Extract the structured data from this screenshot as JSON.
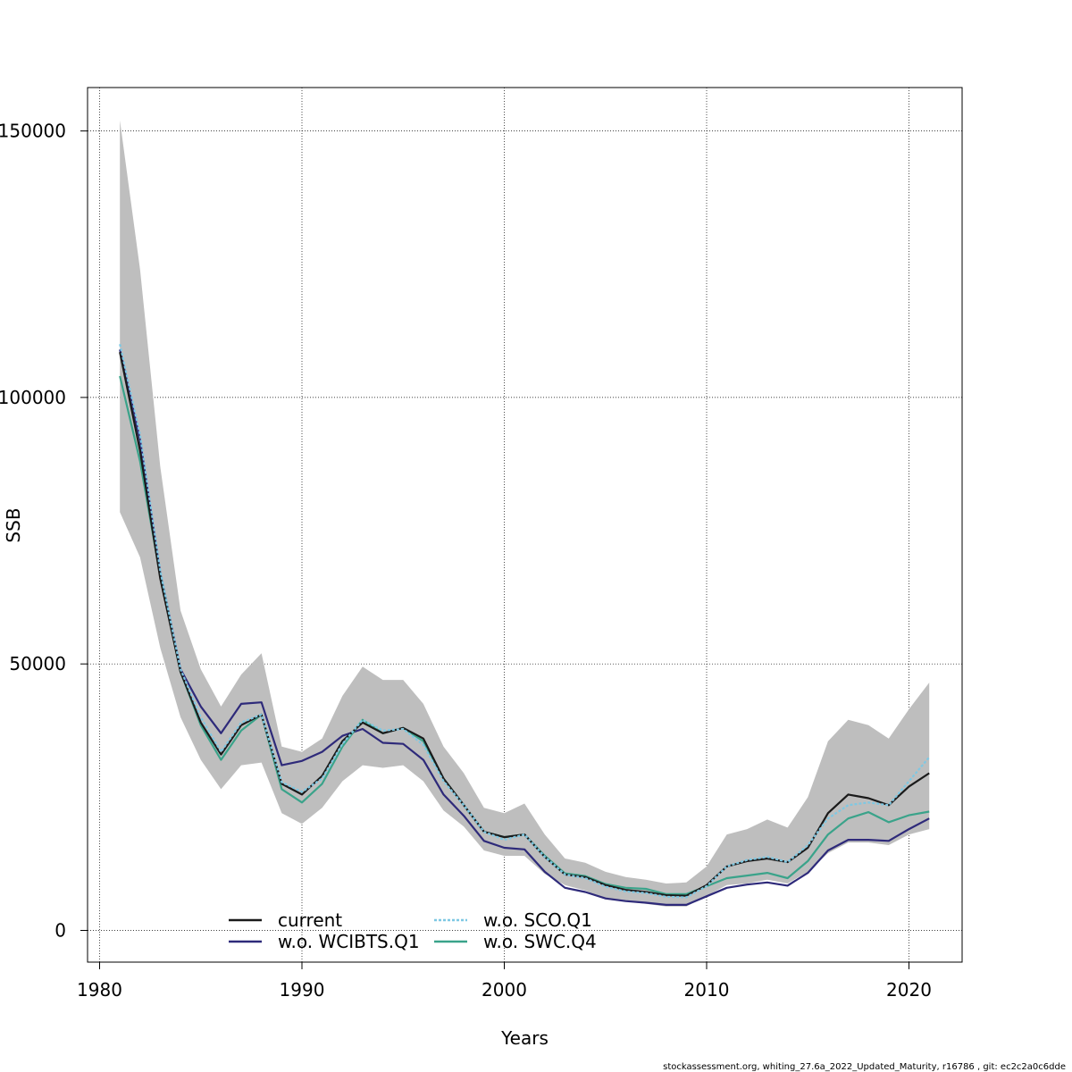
{
  "chart_data": {
    "type": "line",
    "title": "",
    "xlabel": "Years",
    "ylabel": "SSB",
    "xlim": [
      1980,
      2022
    ],
    "ylim": [
      0,
      155000
    ],
    "xticks": [
      1980,
      1990,
      2000,
      2010,
      2020
    ],
    "yticks": [
      0,
      50000,
      100000,
      150000
    ],
    "xtick_labels": [
      "1980",
      "1990",
      "2000",
      "2010",
      "2020"
    ],
    "ytick_labels": [
      "0",
      "50000",
      "100000",
      "150000"
    ],
    "grid": true,
    "legend_position": "bottom-center",
    "x": [
      1981,
      1982,
      1983,
      1984,
      1985,
      1986,
      1987,
      1988,
      1989,
      1990,
      1991,
      1992,
      1993,
      1994,
      1995,
      1996,
      1997,
      1998,
      1999,
      2000,
      2001,
      2002,
      2003,
      2004,
      2005,
      2006,
      2007,
      2008,
      2009,
      2010,
      2011,
      2012,
      2013,
      2014,
      2015,
      2016,
      2017,
      2018,
      2019,
      2020,
      2021
    ],
    "band": {
      "color": "#bebebe",
      "upper": [
        152000,
        124000,
        87000,
        60000,
        49000,
        42000,
        48000,
        52000,
        34500,
        33500,
        36000,
        44000,
        49500,
        47000,
        47000,
        42500,
        34500,
        29500,
        23000,
        22000,
        23800,
        18000,
        13500,
        12700,
        11000,
        10000,
        9500,
        8800,
        9000,
        12000,
        18000,
        19000,
        20800,
        19300,
        25000,
        35500,
        39500,
        38500,
        36000,
        41500,
        46500
      ],
      "lower": [
        78500,
        70000,
        53000,
        40000,
        32000,
        26500,
        31000,
        31500,
        22000,
        20000,
        23000,
        28000,
        31000,
        30500,
        31000,
        28000,
        22500,
        19500,
        15000,
        14000,
        14000,
        10600,
        8500,
        7500,
        5800,
        5400,
        5000,
        4500,
        4500,
        6500,
        8500,
        8800,
        9500,
        8800,
        11000,
        14500,
        16500,
        16500,
        16000,
        18000,
        19000
      ]
    },
    "series": [
      {
        "name": "current",
        "color": "#1a1a1a",
        "dash": "solid",
        "values": [
          108500,
          90000,
          66000,
          48500,
          39000,
          33000,
          38500,
          40500,
          27500,
          25500,
          29000,
          35500,
          39000,
          37000,
          38000,
          36000,
          28500,
          23500,
          18500,
          17500,
          18000,
          13800,
          10500,
          10000,
          8500,
          7600,
          7200,
          6600,
          6500,
          8500,
          12000,
          13000,
          13500,
          12800,
          15500,
          22000,
          25500,
          24800,
          23500,
          27000,
          29500
        ]
      },
      {
        "name": "w.o. WCIBTS.Q1",
        "color": "#2e2a7a",
        "dash": "solid",
        "values": [
          109000,
          92000,
          67000,
          49000,
          42000,
          37000,
          42500,
          42800,
          31000,
          31800,
          33500,
          36500,
          37800,
          35200,
          35000,
          32000,
          25500,
          21500,
          16800,
          15500,
          15200,
          11000,
          8000,
          7200,
          6000,
          5500,
          5200,
          4800,
          4800,
          6400,
          8000,
          8600,
          9000,
          8400,
          10800,
          15000,
          17000,
          17000,
          16800,
          19000,
          21000
        ]
      },
      {
        "name": "w.o. SCO.Q1",
        "color": "#7ec8e3",
        "dash": "dotted",
        "values": [
          110000,
          93000,
          67500,
          49000,
          40000,
          33500,
          39000,
          40500,
          27800,
          26000,
          28500,
          35000,
          39500,
          37500,
          37800,
          34800,
          28000,
          23500,
          18500,
          17000,
          18000,
          13800,
          10500,
          9800,
          8200,
          7300,
          7000,
          6300,
          6200,
          8300,
          12000,
          13200,
          13800,
          12800,
          16000,
          21000,
          23500,
          24000,
          23500,
          28000,
          32500
        ]
      },
      {
        "name": "w.o. SWC.Q4",
        "color": "#3aa38a",
        "dash": "solid",
        "values": [
          104000,
          88000,
          66500,
          48500,
          38500,
          32000,
          37500,
          40500,
          26500,
          24000,
          27500,
          34500,
          39500,
          37000,
          38000,
          35500,
          28500,
          23500,
          18500,
          17500,
          18000,
          14000,
          10700,
          10200,
          8700,
          8000,
          7800,
          6800,
          6800,
          8300,
          9800,
          10300,
          10800,
          9800,
          13000,
          18000,
          21000,
          22200,
          20300,
          21600,
          22300
        ]
      }
    ],
    "legend": {
      "entries": [
        "current",
        "w.o. SCO.Q1",
        "w.o. WCIBTS.Q1",
        "w.o. SWC.Q4"
      ]
    }
  },
  "footer": {
    "note": "stockassessment.org, whiting_27.6a_2022_Updated_Maturity, r16786 , git: ec2c2a0c6dde"
  }
}
